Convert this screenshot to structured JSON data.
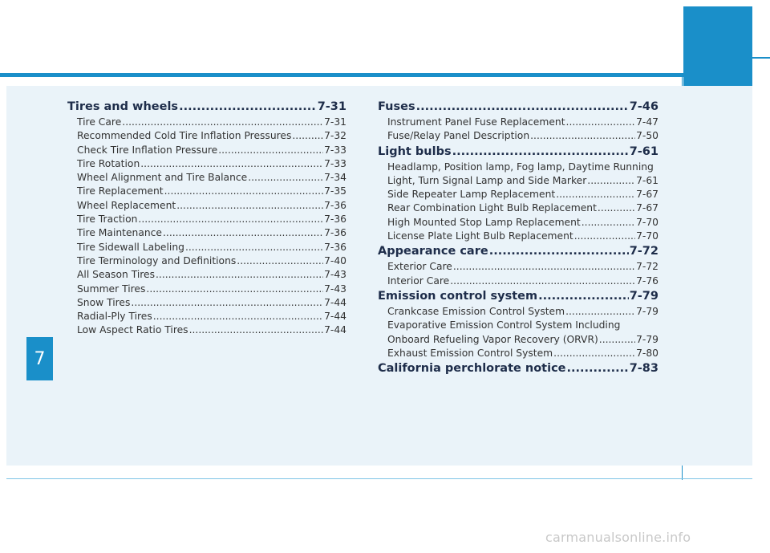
{
  "chapter": "7",
  "left_column": [
    {
      "type": "section",
      "title": "Tires and wheels",
      "page": "7-31"
    },
    {
      "type": "item",
      "title": "Tire Care",
      "page": "7-31"
    },
    {
      "type": "item",
      "title": "Recommended Cold Tire Inflation Pressures",
      "page": "7-32"
    },
    {
      "type": "item",
      "title": "Check Tire Inflation Pressure",
      "page": "7-33"
    },
    {
      "type": "item",
      "title": "Tire Rotation",
      "page": "7-33"
    },
    {
      "type": "item",
      "title": "Wheel Alignment and Tire Balance",
      "page": "7-34"
    },
    {
      "type": "item",
      "title": "Tire Replacement",
      "page": "7-35"
    },
    {
      "type": "item",
      "title": "Wheel Replacement",
      "page": "7-36"
    },
    {
      "type": "item",
      "title": "Tire Traction",
      "page": "7-36"
    },
    {
      "type": "item",
      "title": "Tire Maintenance",
      "page": "7-36"
    },
    {
      "type": "item",
      "title": "Tire Sidewall Labeling",
      "page": "7-36"
    },
    {
      "type": "item",
      "title": "Tire Terminology and Definitions",
      "page": "7-40"
    },
    {
      "type": "item",
      "title": "All Season Tires",
      "page": "7-43"
    },
    {
      "type": "item",
      "title": "Summer Tires",
      "page": "7-43"
    },
    {
      "type": "item",
      "title": "Snow Tires",
      "page": "7-44"
    },
    {
      "type": "item",
      "title": "Radial-Ply Tires",
      "page": "7-44"
    },
    {
      "type": "item",
      "title": "Low Aspect Ratio Tires",
      "page": "7-44"
    }
  ],
  "right_column": [
    {
      "type": "section",
      "title": "Fuses",
      "page": "7-46"
    },
    {
      "type": "item",
      "title": "Instrument Panel Fuse Replacement",
      "page": "7-47"
    },
    {
      "type": "item",
      "title": "Fuse/Relay Panel Description",
      "page": "7-50"
    },
    {
      "type": "section",
      "title": "Light bulbs",
      "page": "7-61"
    },
    {
      "type": "item-nl",
      "title": "Headlamp, Position lamp, Fog lamp, Daytime Running"
    },
    {
      "type": "item",
      "title": "Light, Turn Signal Lamp and Side Marker",
      "page": "7-61"
    },
    {
      "type": "item",
      "title": "Side Repeater Lamp Replacement",
      "page": "7-67"
    },
    {
      "type": "item",
      "title": "Rear Combination Light Bulb Replacement",
      "page": "7-67"
    },
    {
      "type": "item",
      "title": "High Mounted Stop Lamp Replacement",
      "page": "7-70"
    },
    {
      "type": "item",
      "title": "License Plate Light Bulb Replacement",
      "page": "7-70"
    },
    {
      "type": "section",
      "title": "Appearance care",
      "page": "7-72"
    },
    {
      "type": "item",
      "title": "Exterior Care",
      "page": "7-72"
    },
    {
      "type": "item",
      "title": "Interior Care",
      "page": "7-76"
    },
    {
      "type": "section",
      "title": "Emission control system",
      "page": "7-79"
    },
    {
      "type": "item",
      "title": "Crankcase Emission Control System",
      "page": "7-79"
    },
    {
      "type": "item-nl",
      "title": "Evaporative Emission Control System Including"
    },
    {
      "type": "item",
      "title": "Onboard Refueling Vapor Recovery (ORVR)",
      "page": "7-79"
    },
    {
      "type": "item",
      "title": "Exhaust Emission Control System",
      "page": "7-80"
    },
    {
      "type": "section",
      "title": "California perchlorate notice",
      "page": "7-83"
    }
  ],
  "watermark": "carmanualsonline.info",
  "colors": {
    "accent": "#1a8fc9",
    "panel": "#eaf3f9",
    "heading": "#1e2d4a"
  }
}
